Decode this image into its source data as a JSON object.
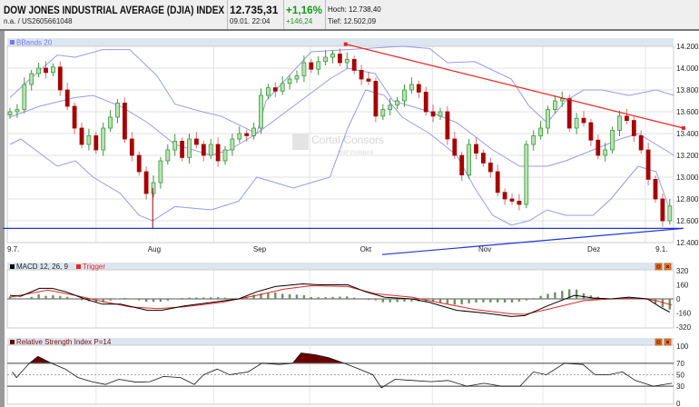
{
  "header": {
    "title": "DOW JONES INDUSTRIAL AVERAGE (DJIA) INDEX",
    "subtitle": "n.a.  /  US2605661048",
    "price": "12.735,31",
    "datetime": "09.01. 22:04",
    "change_pct": "+1,16%",
    "change_abs": "+146,24",
    "high": "Hoch: 12.738,40",
    "low": "Tief: 12.502,09"
  },
  "watermark": {
    "line1": "Cortal Consors",
    "line2": "BNP PARIBAS"
  },
  "colors": {
    "up": "#3a9a3a",
    "up_fill": "#b9e2b2",
    "down": "#a80000",
    "band": "#9999ee",
    "trend_red": "#ee2222",
    "trend_blue": "#2233dd",
    "macd": "#000000",
    "trigger": "#ee2222",
    "histogram": "#6e8f60",
    "rsi_overbought": "#6b0000",
    "rsi_oversold": "#2a8a2a",
    "pane_header": "#dde6f0"
  },
  "chart_data": [
    {
      "type": "candlestick",
      "legend": "BBands 20",
      "ylim": [
        12400,
        14200
      ],
      "yticks": [
        "14.200",
        "14.000",
        "13.800",
        "13.600",
        "13.400",
        "13.200",
        "13.000",
        "12.800",
        "12.600",
        "12.400"
      ],
      "ytick_values": [
        14200,
        14000,
        13800,
        13600,
        13400,
        13200,
        13000,
        12800,
        12600,
        12400
      ],
      "xticks": [
        {
          "label": "9.7.",
          "bar": 0.5
        },
        {
          "label": "Aug",
          "bar": 20.1
        },
        {
          "label": "Sep",
          "bar": 34.8
        },
        {
          "label": "Okt",
          "bar": 49.7
        },
        {
          "label": "Nov",
          "bar": 66.2
        },
        {
          "label": "Dez",
          "bar": 81.4
        },
        {
          "label": "9.1.",
          "bar": 90.9
        }
      ],
      "grid_x_bars": [
        12,
        28.4,
        41.8,
        58.9,
        74.3,
        88.6
      ],
      "grid": true,
      "close": [
        13600,
        13620,
        13850,
        13950,
        14000,
        13960,
        14010,
        13800,
        13650,
        13450,
        13300,
        13380,
        13250,
        13450,
        13550,
        13680,
        13350,
        13200,
        13050,
        12850,
        12950,
        13150,
        13250,
        13330,
        13180,
        13350,
        13300,
        13200,
        13300,
        13150,
        13250,
        13350,
        13400,
        13380,
        13450,
        13750,
        13820,
        13790,
        13860,
        13900,
        13930,
        14050,
        13990,
        14060,
        14100,
        14130,
        14050,
        14080,
        13980,
        13900,
        13880,
        13560,
        13620,
        13660,
        13700,
        13800,
        13850,
        13780,
        13600,
        13560,
        13600,
        13350,
        13200,
        13020,
        13300,
        13220,
        13130,
        13050,
        12860,
        12800,
        12780,
        12750,
        13300,
        13380,
        13450,
        13620,
        13700,
        13720,
        13450,
        13540,
        13500,
        13340,
        13200,
        13250,
        13430,
        13560,
        13520,
        13380,
        13250,
        12980,
        12800,
        12600,
        12735
      ],
      "bbands": {
        "upper": [
          [
            0,
            13730
          ],
          [
            2.8,
            13900
          ],
          [
            6.6,
            14120
          ],
          [
            9.1,
            14100
          ],
          [
            12.9,
            14170
          ],
          [
            16.7,
            14170
          ],
          [
            20.5,
            13930
          ],
          [
            23,
            13670
          ],
          [
            26.8,
            13600
          ],
          [
            29.4,
            13560
          ],
          [
            34.4,
            13400
          ],
          [
            35.7,
            13700
          ],
          [
            42,
            14150
          ],
          [
            47.1,
            14170
          ],
          [
            49.6,
            14180
          ],
          [
            54.7,
            14200
          ],
          [
            58.5,
            14180
          ],
          [
            61,
            14050
          ],
          [
            64.8,
            14060
          ],
          [
            69.9,
            13900
          ],
          [
            72.4,
            13650
          ],
          [
            74.9,
            13500
          ],
          [
            77.5,
            13700
          ],
          [
            80,
            13800
          ],
          [
            82.5,
            13800
          ],
          [
            86.3,
            13750
          ],
          [
            90.1,
            13800
          ],
          [
            92.6,
            13750
          ]
        ],
        "middle": [
          [
            0,
            13550
          ],
          [
            4.1,
            13650
          ],
          [
            9.1,
            13730
          ],
          [
            11.6,
            13750
          ],
          [
            15.4,
            13650
          ],
          [
            19.2,
            13500
          ],
          [
            23,
            13300
          ],
          [
            28.1,
            13200
          ],
          [
            30.6,
            13250
          ],
          [
            34.4,
            13400
          ],
          [
            39.5,
            13650
          ],
          [
            44.6,
            13900
          ],
          [
            47.1,
            14000
          ],
          [
            50.9,
            13950
          ],
          [
            53.4,
            13700
          ],
          [
            58.5,
            13600
          ],
          [
            62.3,
            13500
          ],
          [
            67.3,
            13250
          ],
          [
            71.1,
            13100
          ],
          [
            74.9,
            13100
          ],
          [
            77.5,
            13150
          ],
          [
            81.3,
            13250
          ],
          [
            85.1,
            13350
          ],
          [
            87.6,
            13400
          ],
          [
            90.1,
            13300
          ],
          [
            92.6,
            13200
          ]
        ],
        "lower": [
          [
            0,
            13300
          ],
          [
            1.5,
            13350
          ],
          [
            6.6,
            13100
          ],
          [
            9.1,
            13150
          ],
          [
            11.6,
            13000
          ],
          [
            15.4,
            12850
          ],
          [
            18,
            12650
          ],
          [
            19.9,
            12600
          ],
          [
            23,
            12730
          ],
          [
            28.1,
            12700
          ],
          [
            31.9,
            12780
          ],
          [
            34.4,
            13000
          ],
          [
            37,
            12950
          ],
          [
            39.5,
            12900
          ],
          [
            42,
            12950
          ],
          [
            44.6,
            13000
          ],
          [
            47.1,
            13450
          ],
          [
            49.6,
            13800
          ],
          [
            52.2,
            13750
          ],
          [
            54.7,
            13550
          ],
          [
            58.5,
            13400
          ],
          [
            62.3,
            13200
          ],
          [
            64.8,
            12900
          ],
          [
            67.3,
            12650
          ],
          [
            69.9,
            12560
          ],
          [
            72.4,
            12600
          ],
          [
            74.9,
            12700
          ],
          [
            77.5,
            12650
          ],
          [
            81.3,
            12650
          ],
          [
            83.8,
            12800
          ],
          [
            86.3,
            13000
          ],
          [
            87.6,
            13100
          ],
          [
            90.1,
            13050
          ],
          [
            92,
            12700
          ]
        ]
      },
      "trendlines": [
        {
          "color": "trend_red",
          "from": [
            46.8,
            14220
          ],
          "to": [
            93.9,
            13450
          ]
        },
        {
          "color": "trend_blue",
          "from": [
            -1,
            12530
          ],
          "to": [
            93.9,
            12530
          ]
        },
        {
          "color": "trend_blue",
          "from": [
            51.9,
            12290
          ],
          "to": [
            93.9,
            12530
          ]
        }
      ],
      "low_wick": {
        "bar": 19.9,
        "low": 12530
      }
    },
    {
      "type": "line",
      "legend": [
        "MACD 12, 26, 9",
        "Trigger"
      ],
      "ylim": [
        -320,
        320
      ],
      "yticks": [
        "320",
        "160",
        "0",
        "-160",
        "-320"
      ],
      "ytick_values": [
        320,
        160,
        0,
        -160,
        -320
      ],
      "macd": [
        [
          0,
          40
        ],
        [
          1.5,
          30
        ],
        [
          4.1,
          120
        ],
        [
          5.9,
          120
        ],
        [
          7.8,
          80
        ],
        [
          10.4,
          0
        ],
        [
          12.9,
          -60
        ],
        [
          15.4,
          -60
        ],
        [
          19.2,
          -130
        ],
        [
          21.1,
          -130
        ],
        [
          24.3,
          -80
        ],
        [
          28.1,
          -40
        ],
        [
          31.9,
          0
        ],
        [
          34.4,
          80
        ],
        [
          37,
          140
        ],
        [
          40.8,
          170
        ],
        [
          43.3,
          160
        ],
        [
          47.1,
          160
        ],
        [
          49.6,
          80
        ],
        [
          52.2,
          20
        ],
        [
          56,
          0
        ],
        [
          58.5,
          -40
        ],
        [
          62.3,
          -130
        ],
        [
          66.1,
          -160
        ],
        [
          69.9,
          -200
        ],
        [
          71.8,
          -190
        ],
        [
          74.9,
          -80
        ],
        [
          78.7,
          40
        ],
        [
          81.3,
          10
        ],
        [
          83.8,
          0
        ],
        [
          86.3,
          20
        ],
        [
          88.9,
          0
        ],
        [
          90.8,
          -100
        ],
        [
          92,
          -150
        ]
      ],
      "trigger": [
        [
          0,
          20
        ],
        [
          5.3,
          100
        ],
        [
          9.1,
          40
        ],
        [
          12.9,
          -30
        ],
        [
          16.7,
          -90
        ],
        [
          20.5,
          -110
        ],
        [
          24.3,
          -90
        ],
        [
          29.4,
          -40
        ],
        [
          34.4,
          40
        ],
        [
          38.2,
          110
        ],
        [
          42,
          150
        ],
        [
          47.1,
          140
        ],
        [
          50.9,
          60
        ],
        [
          56,
          20
        ],
        [
          59.7,
          -40
        ],
        [
          64.8,
          -120
        ],
        [
          69.9,
          -170
        ],
        [
          71.8,
          -175
        ],
        [
          74.9,
          -120
        ],
        [
          80,
          -20
        ],
        [
          83.8,
          0
        ],
        [
          87.6,
          10
        ],
        [
          90.1,
          -20
        ],
        [
          92.3,
          -70
        ]
      ]
    },
    {
      "type": "line",
      "legend": "Relative Strength Index P=14",
      "ylim": [
        0,
        100
      ],
      "yticks": [
        "100",
        "70",
        "50",
        "30",
        "0"
      ],
      "ytick_values": [
        100,
        70,
        50,
        30,
        0
      ],
      "levels": [
        70,
        50,
        30
      ],
      "rsi": [
        [
          0.3,
          55
        ],
        [
          0.9,
          45
        ],
        [
          2.7,
          70
        ],
        [
          3.9,
          82
        ],
        [
          5.8,
          70
        ],
        [
          7.7,
          60
        ],
        [
          9.5,
          45
        ],
        [
          11.4,
          38
        ],
        [
          13.3,
          33
        ],
        [
          15.2,
          42
        ],
        [
          17.6,
          37
        ],
        [
          19.5,
          38
        ],
        [
          21.4,
          47
        ],
        [
          23.8,
          45
        ],
        [
          25.7,
          33
        ],
        [
          27,
          50
        ],
        [
          28.9,
          60
        ],
        [
          30.6,
          50
        ],
        [
          33.2,
          55
        ],
        [
          35.1,
          70
        ],
        [
          37.6,
          68
        ],
        [
          39.4,
          70
        ],
        [
          40.6,
          88
        ],
        [
          42.5,
          85
        ],
        [
          44.4,
          80
        ],
        [
          46.2,
          72
        ],
        [
          48.7,
          60
        ],
        [
          50.6,
          50
        ],
        [
          51.8,
          27
        ],
        [
          53.7,
          42
        ],
        [
          56.2,
          40
        ],
        [
          58.7,
          38
        ],
        [
          61.1,
          40
        ],
        [
          63.7,
          30
        ],
        [
          66.1,
          35
        ],
        [
          68.6,
          30
        ],
        [
          71.1,
          30
        ],
        [
          73,
          55
        ],
        [
          74.8,
          50
        ],
        [
          77.3,
          70
        ],
        [
          79.9,
          68
        ],
        [
          81.6,
          50
        ],
        [
          83.5,
          50
        ],
        [
          85.4,
          55
        ],
        [
          87.2,
          40
        ],
        [
          89.7,
          30
        ],
        [
          92.3,
          35
        ]
      ]
    }
  ]
}
